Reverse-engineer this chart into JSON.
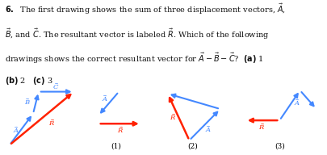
{
  "blue": "#4488ff",
  "red": "#ff2200",
  "bg": "#ffffff",
  "text_color": "#111111",
  "figsize": [
    4.05,
    1.92
  ],
  "dpi": 100
}
